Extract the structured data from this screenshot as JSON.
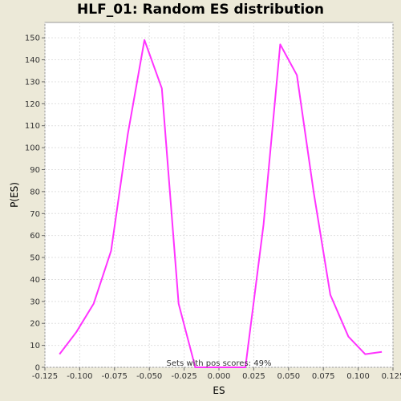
{
  "chart_data": {
    "type": "line",
    "title": "HLF_01: Random ES distribution",
    "xlabel": "ES",
    "ylabel": "P(ES)",
    "xlim": [
      -0.125,
      0.125
    ],
    "ylim": [
      0,
      157
    ],
    "xticks": [
      "-0.125",
      "-0.100",
      "-0.075",
      "-0.050",
      "-0.025",
      "0.000",
      "0.025",
      "0.050",
      "0.075",
      "0.100",
      "0.125"
    ],
    "xtick_values": [
      -0.125,
      -0.1,
      -0.075,
      -0.05,
      -0.025,
      0.0,
      0.025,
      0.05,
      0.075,
      0.1,
      0.125
    ],
    "yticks": [
      0,
      10,
      20,
      30,
      40,
      50,
      60,
      70,
      80,
      90,
      100,
      110,
      120,
      130,
      140,
      150
    ],
    "grid": true,
    "annotation": "Sets with pos scores: 49%",
    "series": [
      {
        "color": "#ff33ff",
        "x": [
          -0.1145,
          -0.1025,
          -0.09,
          -0.0775,
          -0.0655,
          -0.0535,
          -0.041,
          -0.029,
          -0.017,
          -0.005,
          0.007,
          0.019,
          0.032,
          0.044,
          0.056,
          0.068,
          0.08,
          0.093,
          0.105,
          0.117
        ],
        "y": [
          6,
          16,
          29,
          53,
          106,
          149,
          127,
          29,
          0,
          0,
          0,
          0,
          65,
          147,
          133,
          80,
          33,
          14,
          6,
          7
        ]
      }
    ]
  },
  "colors": {
    "background": "#ece9d8",
    "plot_background": "#ffffff",
    "grid": "#e0e0e0",
    "series": "#ff33ff"
  }
}
